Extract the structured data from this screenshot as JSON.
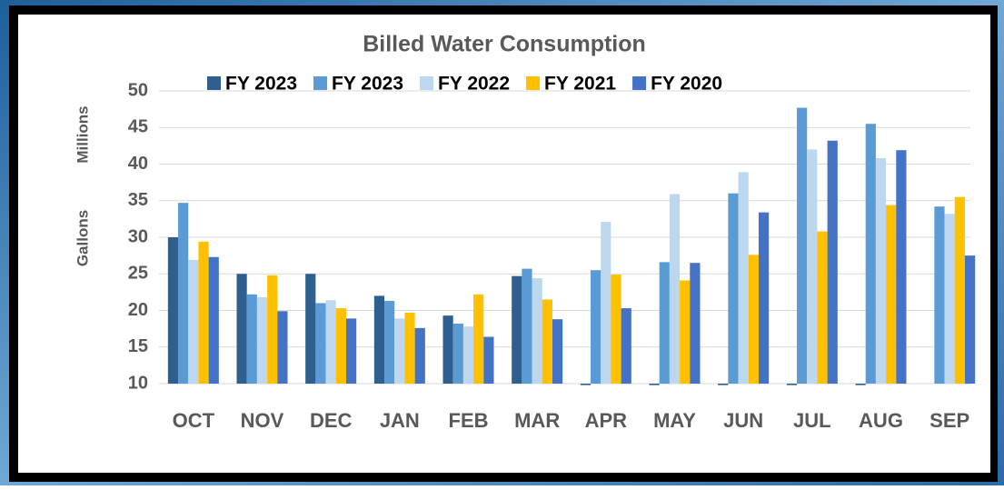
{
  "chart_data": {
    "type": "bar",
    "title": "Billed Water Consumption",
    "ylabel": "Gallons",
    "yunits": "Millions",
    "categories": [
      "OCT",
      "NOV",
      "DEC",
      "JAN",
      "FEB",
      "MAR",
      "APR",
      "MAY",
      "JUN",
      "JUL",
      "AUG",
      "SEP"
    ],
    "series": [
      {
        "name": "FY 2023",
        "color": "#2e5f8f",
        "values": [
          30,
          25,
          25,
          22,
          19.3,
          24.7,
          9.8,
          9.8,
          9.8,
          9.8,
          9.8,
          null
        ]
      },
      {
        "name": "FY 2023",
        "color": "#5b9bd5",
        "values": [
          34.7,
          22.2,
          21,
          21.3,
          18.2,
          25.7,
          25.5,
          26.6,
          36,
          47.7,
          45.5,
          34.2
        ]
      },
      {
        "name": "FY 2022",
        "color": "#bdd7ee",
        "values": [
          26.9,
          21.8,
          21.4,
          18.9,
          17.8,
          24.4,
          32.1,
          35.9,
          38.9,
          42,
          40.8,
          33.2
        ]
      },
      {
        "name": "FY 2021",
        "color": "#ffc000",
        "values": [
          29.4,
          24.8,
          20.3,
          19.7,
          22.2,
          21.5,
          24.9,
          24.1,
          27.6,
          30.8,
          34.4,
          35.5
        ]
      },
      {
        "name": "FY 2020",
        "color": "#4472c4",
        "values": [
          27.3,
          19.9,
          18.9,
          17.6,
          16.4,
          18.8,
          20.3,
          26.5,
          33.4,
          43.2,
          41.9,
          27.5
        ]
      }
    ],
    "ylim": [
      10,
      50
    ],
    "yticks": [
      10,
      15,
      20,
      25,
      30,
      35,
      40,
      45,
      50
    ],
    "grid": true,
    "legend": "top"
  }
}
